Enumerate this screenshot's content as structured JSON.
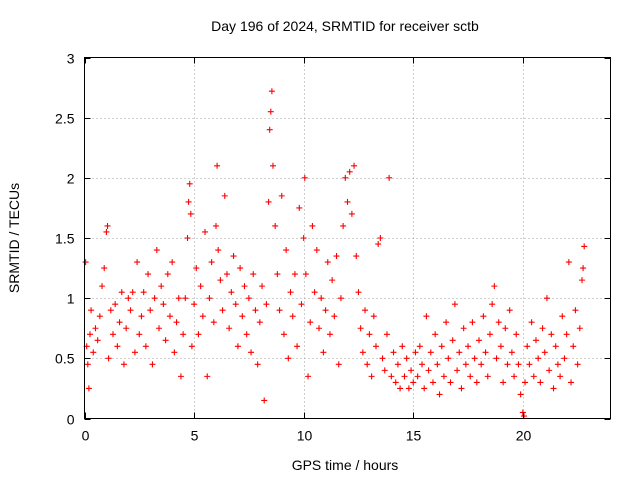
{
  "chart_data": {
    "type": "scatter",
    "title": "Day 196 of 2024, SRMTID for receiver sctb",
    "xlabel": "GPS time / hours",
    "ylabel": "SRMTID / TECUs",
    "xlim": [
      0,
      24
    ],
    "ylim": [
      0,
      3
    ],
    "xticks": [
      0,
      5,
      10,
      15,
      20
    ],
    "yticks": [
      0,
      0.5,
      1,
      1.5,
      2,
      2.5,
      3
    ],
    "x_tick_labels": [
      "0",
      "5",
      "10",
      "15",
      "20"
    ],
    "y_tick_labels": [
      "0",
      "0.5",
      "1",
      "1.5",
      "2",
      "2.5",
      "3"
    ],
    "grid": true,
    "marker": "+",
    "color": "#ff0000",
    "series": [
      {
        "name": "SRMTID",
        "points": [
          [
            0.05,
            1.3
          ],
          [
            0.1,
            0.6
          ],
          [
            0.15,
            0.45
          ],
          [
            0.2,
            0.25
          ],
          [
            0.25,
            0.7
          ],
          [
            0.3,
            0.9
          ],
          [
            0.4,
            0.55
          ],
          [
            0.5,
            0.75
          ],
          [
            0.6,
            0.65
          ],
          [
            0.7,
            0.85
          ],
          [
            0.8,
            1.1
          ],
          [
            0.9,
            1.25
          ],
          [
            1.0,
            1.55
          ],
          [
            1.05,
            1.6
          ],
          [
            1.1,
            0.5
          ],
          [
            1.2,
            0.9
          ],
          [
            1.3,
            0.7
          ],
          [
            1.4,
            0.95
          ],
          [
            1.5,
            0.6
          ],
          [
            1.6,
            0.8
          ],
          [
            1.7,
            1.05
          ],
          [
            1.8,
            0.45
          ],
          [
            1.9,
            0.75
          ],
          [
            2.0,
            1.0
          ],
          [
            2.1,
            0.9
          ],
          [
            2.2,
            1.05
          ],
          [
            2.3,
            0.55
          ],
          [
            2.4,
            1.3
          ],
          [
            2.5,
            0.7
          ],
          [
            2.6,
            0.85
          ],
          [
            2.7,
            1.05
          ],
          [
            2.8,
            0.6
          ],
          [
            2.9,
            1.2
          ],
          [
            3.0,
            0.9
          ],
          [
            3.1,
            0.45
          ],
          [
            3.2,
            1.0
          ],
          [
            3.3,
            1.4
          ],
          [
            3.4,
            0.75
          ],
          [
            3.5,
            1.1
          ],
          [
            3.6,
            0.95
          ],
          [
            3.7,
            0.65
          ],
          [
            3.8,
            1.2
          ],
          [
            3.9,
            0.85
          ],
          [
            4.0,
            1.3
          ],
          [
            4.1,
            0.55
          ],
          [
            4.2,
            0.8
          ],
          [
            4.3,
            1.0
          ],
          [
            4.4,
            0.35
          ],
          [
            4.5,
            0.7
          ],
          [
            4.6,
            1.0
          ],
          [
            4.7,
            1.5
          ],
          [
            4.75,
            1.8
          ],
          [
            4.8,
            1.95
          ],
          [
            4.85,
            1.7
          ],
          [
            4.9,
            0.6
          ],
          [
            5.0,
            0.95
          ],
          [
            5.1,
            1.25
          ],
          [
            5.2,
            0.7
          ],
          [
            5.3,
            1.1
          ],
          [
            5.4,
            0.85
          ],
          [
            5.5,
            1.55
          ],
          [
            5.6,
            0.35
          ],
          [
            5.7,
            1.0
          ],
          [
            5.8,
            1.3
          ],
          [
            5.9,
            0.8
          ],
          [
            6.0,
            1.6
          ],
          [
            6.05,
            2.1
          ],
          [
            6.1,
            1.4
          ],
          [
            6.2,
            1.15
          ],
          [
            6.3,
            0.9
          ],
          [
            6.4,
            1.85
          ],
          [
            6.5,
            1.2
          ],
          [
            6.6,
            0.75
          ],
          [
            6.7,
            1.05
          ],
          [
            6.8,
            1.35
          ],
          [
            6.9,
            0.95
          ],
          [
            7.0,
            0.6
          ],
          [
            7.1,
            1.25
          ],
          [
            7.2,
            0.85
          ],
          [
            7.3,
            1.1
          ],
          [
            7.4,
            0.7
          ],
          [
            7.5,
            1.0
          ],
          [
            7.6,
            0.55
          ],
          [
            7.7,
            1.2
          ],
          [
            7.8,
            0.9
          ],
          [
            7.9,
            0.45
          ],
          [
            8.0,
            0.8
          ],
          [
            8.1,
            1.1
          ],
          [
            8.2,
            0.15
          ],
          [
            8.3,
            0.95
          ],
          [
            8.4,
            1.8
          ],
          [
            8.45,
            2.4
          ],
          [
            8.5,
            2.55
          ],
          [
            8.55,
            2.72
          ],
          [
            8.6,
            2.1
          ],
          [
            8.7,
            1.6
          ],
          [
            8.8,
            1.2
          ],
          [
            8.9,
            0.9
          ],
          [
            9.0,
            1.85
          ],
          [
            9.1,
            0.7
          ],
          [
            9.2,
            1.4
          ],
          [
            9.3,
            0.5
          ],
          [
            9.4,
            1.05
          ],
          [
            9.5,
            0.85
          ],
          [
            9.6,
            1.2
          ],
          [
            9.7,
            0.6
          ],
          [
            9.8,
            1.75
          ],
          [
            9.9,
            0.95
          ],
          [
            10.0,
            1.5
          ],
          [
            10.05,
            2.0
          ],
          [
            10.1,
            1.2
          ],
          [
            10.2,
            0.35
          ],
          [
            10.3,
            0.8
          ],
          [
            10.4,
            1.6
          ],
          [
            10.5,
            1.05
          ],
          [
            10.6,
            1.4
          ],
          [
            10.7,
            0.75
          ],
          [
            10.8,
            1.0
          ],
          [
            10.9,
            0.55
          ],
          [
            11.0,
            0.9
          ],
          [
            11.1,
            1.3
          ],
          [
            11.2,
            0.7
          ],
          [
            11.3,
            1.15
          ],
          [
            11.4,
            0.85
          ],
          [
            11.5,
            1.35
          ],
          [
            11.6,
            0.45
          ],
          [
            11.7,
            1.0
          ],
          [
            11.8,
            1.6
          ],
          [
            11.9,
            2.0
          ],
          [
            12.0,
            1.8
          ],
          [
            12.1,
            2.05
          ],
          [
            12.2,
            1.7
          ],
          [
            12.3,
            2.1
          ],
          [
            12.4,
            1.35
          ],
          [
            12.5,
            1.05
          ],
          [
            12.6,
            0.75
          ],
          [
            12.7,
            0.55
          ],
          [
            12.8,
            0.9
          ],
          [
            12.9,
            0.45
          ],
          [
            13.0,
            0.7
          ],
          [
            13.1,
            0.35
          ],
          [
            13.2,
            0.85
          ],
          [
            13.3,
            0.6
          ],
          [
            13.4,
            1.45
          ],
          [
            13.5,
            1.5
          ],
          [
            13.6,
            0.5
          ],
          [
            13.7,
            0.4
          ],
          [
            13.8,
            0.7
          ],
          [
            13.9,
            2.0
          ],
          [
            14.0,
            0.35
          ],
          [
            14.1,
            0.55
          ],
          [
            14.2,
            0.3
          ],
          [
            14.3,
            0.45
          ],
          [
            14.4,
            0.25
          ],
          [
            14.5,
            0.6
          ],
          [
            14.6,
            0.35
          ],
          [
            14.7,
            0.5
          ],
          [
            14.8,
            0.25
          ],
          [
            14.9,
            0.4
          ],
          [
            15.0,
            0.3
          ],
          [
            15.1,
            0.55
          ],
          [
            15.2,
            0.35
          ],
          [
            15.3,
            0.6
          ],
          [
            15.4,
            0.45
          ],
          [
            15.5,
            0.25
          ],
          [
            15.6,
            0.85
          ],
          [
            15.7,
            0.4
          ],
          [
            15.8,
            0.55
          ],
          [
            15.9,
            0.3
          ],
          [
            16.0,
            0.7
          ],
          [
            16.1,
            0.45
          ],
          [
            16.2,
            0.2
          ],
          [
            16.3,
            0.6
          ],
          [
            16.4,
            0.35
          ],
          [
            16.5,
            0.8
          ],
          [
            16.6,
            0.5
          ],
          [
            16.7,
            0.3
          ],
          [
            16.8,
            0.65
          ],
          [
            16.9,
            0.95
          ],
          [
            17.0,
            0.4
          ],
          [
            17.1,
            0.55
          ],
          [
            17.2,
            0.25
          ],
          [
            17.3,
            0.75
          ],
          [
            17.4,
            0.45
          ],
          [
            17.5,
            0.6
          ],
          [
            17.6,
            0.35
          ],
          [
            17.7,
            0.8
          ],
          [
            17.8,
            0.5
          ],
          [
            17.9,
            0.3
          ],
          [
            18.0,
            0.65
          ],
          [
            18.1,
            0.45
          ],
          [
            18.2,
            0.85
          ],
          [
            18.3,
            0.55
          ],
          [
            18.4,
            0.35
          ],
          [
            18.5,
            0.7
          ],
          [
            18.6,
            0.95
          ],
          [
            18.7,
            1.1
          ],
          [
            18.8,
            0.5
          ],
          [
            18.9,
            0.8
          ],
          [
            19.0,
            0.6
          ],
          [
            19.1,
            0.3
          ],
          [
            19.2,
            0.75
          ],
          [
            19.3,
            0.45
          ],
          [
            19.4,
            0.9
          ],
          [
            19.5,
            0.55
          ],
          [
            19.6,
            0.35
          ],
          [
            19.7,
            0.7
          ],
          [
            19.8,
            0.45
          ],
          [
            19.9,
            0.2
          ],
          [
            20.0,
            0.05
          ],
          [
            20.05,
            0.02
          ],
          [
            20.1,
            0.3
          ],
          [
            20.2,
            0.6
          ],
          [
            20.3,
            0.45
          ],
          [
            20.4,
            0.8
          ],
          [
            20.5,
            0.35
          ],
          [
            20.6,
            0.65
          ],
          [
            20.7,
            0.5
          ],
          [
            20.8,
            0.3
          ],
          [
            20.9,
            0.75
          ],
          [
            21.0,
            0.55
          ],
          [
            21.1,
            1.0
          ],
          [
            21.2,
            0.4
          ],
          [
            21.3,
            0.7
          ],
          [
            21.4,
            0.25
          ],
          [
            21.5,
            0.6
          ],
          [
            21.6,
            0.45
          ],
          [
            21.7,
            0.35
          ],
          [
            21.8,
            0.85
          ],
          [
            21.9,
            0.5
          ],
          [
            22.0,
            0.7
          ],
          [
            22.1,
            1.3
          ],
          [
            22.2,
            0.3
          ],
          [
            22.3,
            0.6
          ],
          [
            22.4,
            0.9
          ],
          [
            22.5,
            0.45
          ],
          [
            22.6,
            0.75
          ],
          [
            22.7,
            1.15
          ],
          [
            22.75,
            1.25
          ],
          [
            22.8,
            1.43
          ]
        ]
      }
    ]
  }
}
